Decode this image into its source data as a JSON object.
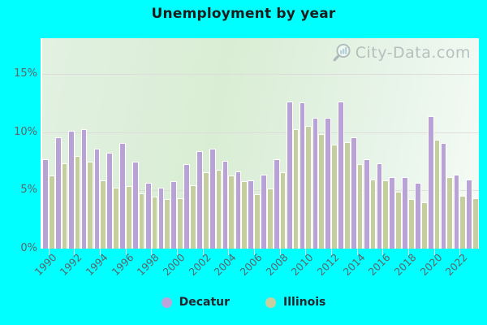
{
  "title": "Unemployment by year",
  "watermark": {
    "text": "City-Data.com",
    "icon": "magnifier-bar-chart-icon"
  },
  "legend": [
    {
      "label": "Decatur",
      "color": "#bba4d9"
    },
    {
      "label": "Illinois",
      "color": "#c6cf9f"
    }
  ],
  "colors": {
    "page_background": "#00ffff",
    "decatur_bar": "#b9a3d6",
    "illinois_bar": "#c5cf9e",
    "bar_border": "#ffffff",
    "title_text": "#1c1c1c",
    "axis_text": "#5d6568",
    "gridline": "#ded4d8",
    "watermark_text": "#a9b3b4"
  },
  "chart_data": {
    "type": "bar",
    "title": "Unemployment by year",
    "xlabel": "",
    "ylabel": "",
    "grid": "horizontal",
    "legend_position": "bottom",
    "ylim": [
      0,
      18.1
    ],
    "y_ticks": [
      "0%",
      "5%",
      "10%",
      "15%"
    ],
    "y_tick_values": [
      0,
      5,
      10,
      15
    ],
    "x_tick_years": [
      1990,
      1992,
      1994,
      1996,
      1998,
      2000,
      2002,
      2004,
      2006,
      2008,
      2010,
      2012,
      2014,
      2016,
      2018,
      2020,
      2022
    ],
    "categories": [
      1990,
      1991,
      1992,
      1993,
      1994,
      1995,
      1996,
      1997,
      1998,
      1999,
      2000,
      2001,
      2002,
      2003,
      2004,
      2005,
      2006,
      2007,
      2008,
      2009,
      2010,
      2011,
      2012,
      2013,
      2014,
      2015,
      2016,
      2017,
      2018,
      2019,
      2020,
      2021,
      2022,
      2023
    ],
    "unit": "%",
    "series": [
      {
        "name": "Decatur",
        "color": "#b9a3d6",
        "values": [
          7.6,
          9.5,
          10.1,
          10.2,
          8.5,
          8.2,
          9.0,
          7.4,
          5.6,
          5.2,
          5.7,
          7.2,
          8.3,
          8.5,
          7.5,
          6.6,
          5.8,
          6.3,
          7.6,
          12.6,
          12.5,
          11.2,
          11.2,
          12.6,
          9.5,
          7.6,
          7.3,
          6.1,
          6.1,
          5.6,
          11.3,
          9.0,
          6.3,
          5.9
        ]
      },
      {
        "name": "Illinois",
        "color": "#c5cf9e",
        "values": [
          6.2,
          7.3,
          7.9,
          7.4,
          5.8,
          5.2,
          5.3,
          4.7,
          4.4,
          4.2,
          4.3,
          5.4,
          6.5,
          6.7,
          6.2,
          5.7,
          4.6,
          5.1,
          6.5,
          10.2,
          10.5,
          9.8,
          8.9,
          9.1,
          7.2,
          5.9,
          5.8,
          4.8,
          4.2,
          3.9,
          9.3,
          6.1,
          4.5,
          4.3
        ]
      }
    ]
  }
}
